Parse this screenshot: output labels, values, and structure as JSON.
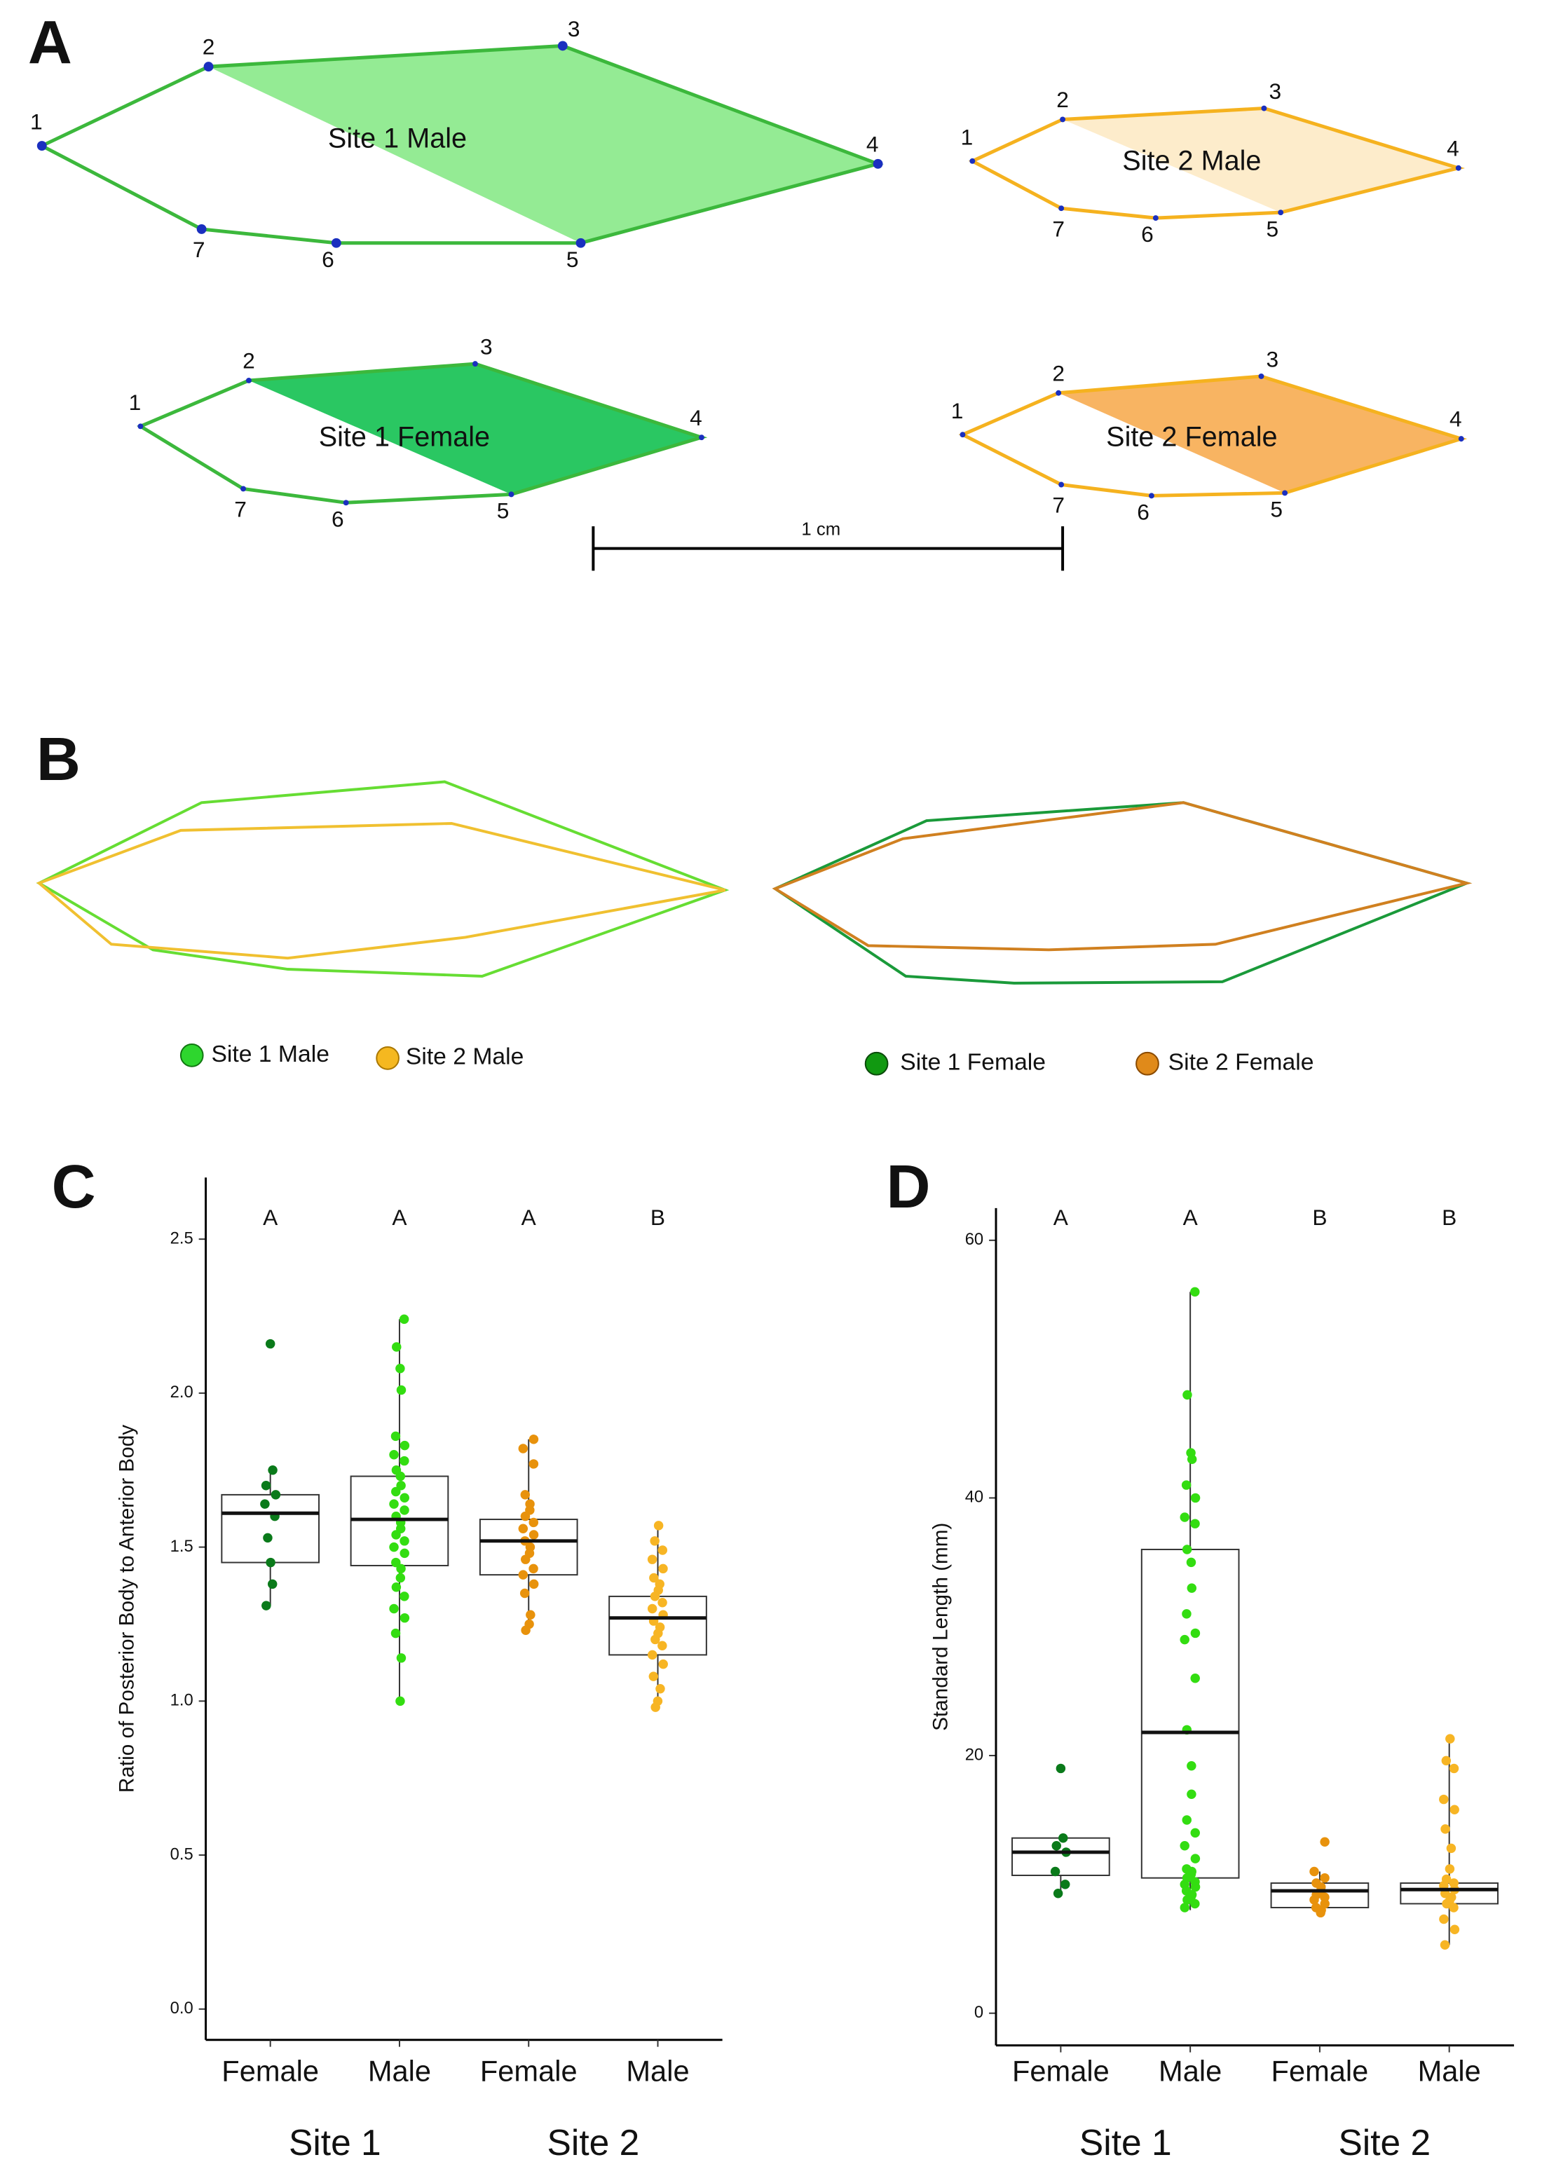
{
  "panel_a": {
    "letter": "A",
    "shapes": [
      {
        "name": "Site 1 Male",
        "landmarks": [
          1,
          2,
          3,
          4,
          5,
          6,
          7
        ]
      },
      {
        "name": "Site 2 Male",
        "landmarks": [
          1,
          2,
          3,
          4,
          5,
          6,
          7
        ]
      },
      {
        "name": "Site 1 Female",
        "landmarks": [
          1,
          2,
          3,
          4,
          5,
          6,
          7
        ]
      },
      {
        "name": "Site 2 Female",
        "landmarks": [
          1,
          2,
          3,
          4,
          5,
          6,
          7
        ]
      }
    ],
    "scale_bar": "1 cm"
  },
  "panel_b": {
    "letter": "B",
    "legends": [
      [
        "Site 1 Male",
        "Site 2 Male"
      ],
      [
        "Site 1 Female",
        "Site 2 Female"
      ]
    ]
  },
  "chart_data": [
    {
      "type": "box",
      "letter": "C",
      "ylabel": "Ratio of Posterior Body to Anterior Body",
      "categories": [
        "Female",
        "Male",
        "Female",
        "Male"
      ],
      "groups": [
        "Site 1",
        "Site 2"
      ],
      "significance": [
        "A",
        "A",
        "A",
        "B"
      ],
      "ylim": [
        -0.1,
        2.7
      ],
      "yticks": [
        {
          "value": 0,
          "label": "0.0"
        },
        0.5,
        {
          "value": 1,
          "label": "1.0"
        },
        1.5,
        {
          "value": 2,
          "label": "2.0"
        },
        2.5
      ],
      "series": [
        {
          "color": "#0a7a1a",
          "box": {
            "whislo": 1.31,
            "q1": 1.45,
            "med": 1.61,
            "q3": 1.67,
            "whishi": 1.75
          },
          "points": [
            2.16,
            1.75,
            1.7,
            1.67,
            1.64,
            1.6,
            1.53,
            1.45,
            1.38,
            1.31
          ]
        },
        {
          "color": "#33dd11",
          "box": {
            "whislo": 1.0,
            "q1": 1.44,
            "med": 1.59,
            "q3": 1.73,
            "whishi": 2.24
          },
          "points": [
            2.24,
            2.15,
            2.08,
            2.01,
            1.86,
            1.83,
            1.8,
            1.78,
            1.75,
            1.73,
            1.7,
            1.68,
            1.66,
            1.64,
            1.62,
            1.6,
            1.58,
            1.56,
            1.54,
            1.52,
            1.5,
            1.48,
            1.45,
            1.43,
            1.4,
            1.37,
            1.34,
            1.3,
            1.27,
            1.22,
            1.14,
            1.0
          ]
        },
        {
          "color": "#e8920c",
          "box": {
            "whislo": 1.23,
            "q1": 1.41,
            "med": 1.52,
            "q3": 1.59,
            "whishi": 1.85
          },
          "points": [
            1.85,
            1.82,
            1.77,
            1.67,
            1.64,
            1.62,
            1.6,
            1.58,
            1.56,
            1.54,
            1.52,
            1.5,
            1.48,
            1.46,
            1.43,
            1.41,
            1.38,
            1.35,
            1.28,
            1.25,
            1.23
          ]
        },
        {
          "color": "#f7b524",
          "box": {
            "whislo": 0.98,
            "q1": 1.15,
            "med": 1.27,
            "q3": 1.34,
            "whishi": 1.57
          },
          "points": [
            1.57,
            1.52,
            1.49,
            1.46,
            1.43,
            1.4,
            1.38,
            1.36,
            1.34,
            1.32,
            1.3,
            1.28,
            1.26,
            1.24,
            1.22,
            1.2,
            1.18,
            1.15,
            1.12,
            1.08,
            1.04,
            1.0,
            0.98
          ]
        }
      ]
    },
    {
      "type": "box",
      "letter": "D",
      "ylabel": "Standard Length (mm)",
      "categories": [
        "Female",
        "Male",
        "Female",
        "Male"
      ],
      "groups": [
        "Site 1",
        "Site 2"
      ],
      "significance": [
        "A",
        "A",
        "B",
        "B"
      ],
      "ylim": [
        -2.5,
        62.5
      ],
      "yticks": [
        0,
        20,
        40,
        60
      ],
      "series": [
        {
          "color": "#0a7a1a",
          "box": {
            "whislo": 9.3,
            "q1": 10.7,
            "med": 12.5,
            "q3": 13.6,
            "whishi": 13.6
          },
          "points": [
            19.0,
            13.6,
            13.0,
            12.5,
            11.0,
            10.0,
            9.3
          ]
        },
        {
          "color": "#33dd11",
          "box": {
            "whislo": 8.0,
            "q1": 10.5,
            "med": 21.8,
            "q3": 36.0,
            "whishi": 56.0
          },
          "points": [
            56,
            48,
            43.5,
            43,
            41,
            40,
            38.5,
            38,
            36,
            35,
            33,
            31,
            29.5,
            29,
            26,
            22,
            19.2,
            17,
            15,
            14,
            13,
            12,
            11.2,
            11,
            10.8,
            10.5,
            10.2,
            10,
            9.8,
            9.5,
            9.2,
            9,
            8.8,
            8.5,
            8.2
          ]
        },
        {
          "color": "#e8920c",
          "box": {
            "whislo": 7.8,
            "q1": 8.2,
            "med": 9.5,
            "q3": 10.1,
            "whishi": 11.0
          },
          "points": [
            13.3,
            11,
            10.5,
            10.1,
            9.8,
            9.5,
            9.2,
            9,
            8.8,
            8.5,
            8.2,
            8,
            7.8
          ]
        },
        {
          "color": "#f7b524",
          "box": {
            "whislo": 5.3,
            "q1": 8.5,
            "med": 9.6,
            "q3": 10.1,
            "whishi": 21.3
          },
          "points": [
            21.3,
            19.6,
            19,
            16.6,
            15.8,
            14.3,
            12.8,
            11.2,
            10.4,
            10.1,
            9.9,
            9.6,
            9.3,
            9,
            8.7,
            8.5,
            8.2,
            7.3,
            6.5,
            5.3
          ]
        }
      ]
    }
  ]
}
